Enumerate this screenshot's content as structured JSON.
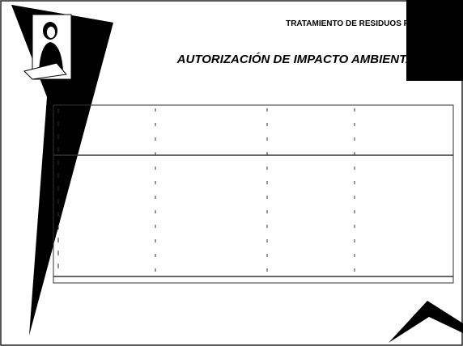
{
  "header": {
    "subtitle": "TRATAMIENTO DE RESIDUOS PE",
    "title": "AUTORIZACIÓN DE IMPACTO AMBIENTA"
  }
}
